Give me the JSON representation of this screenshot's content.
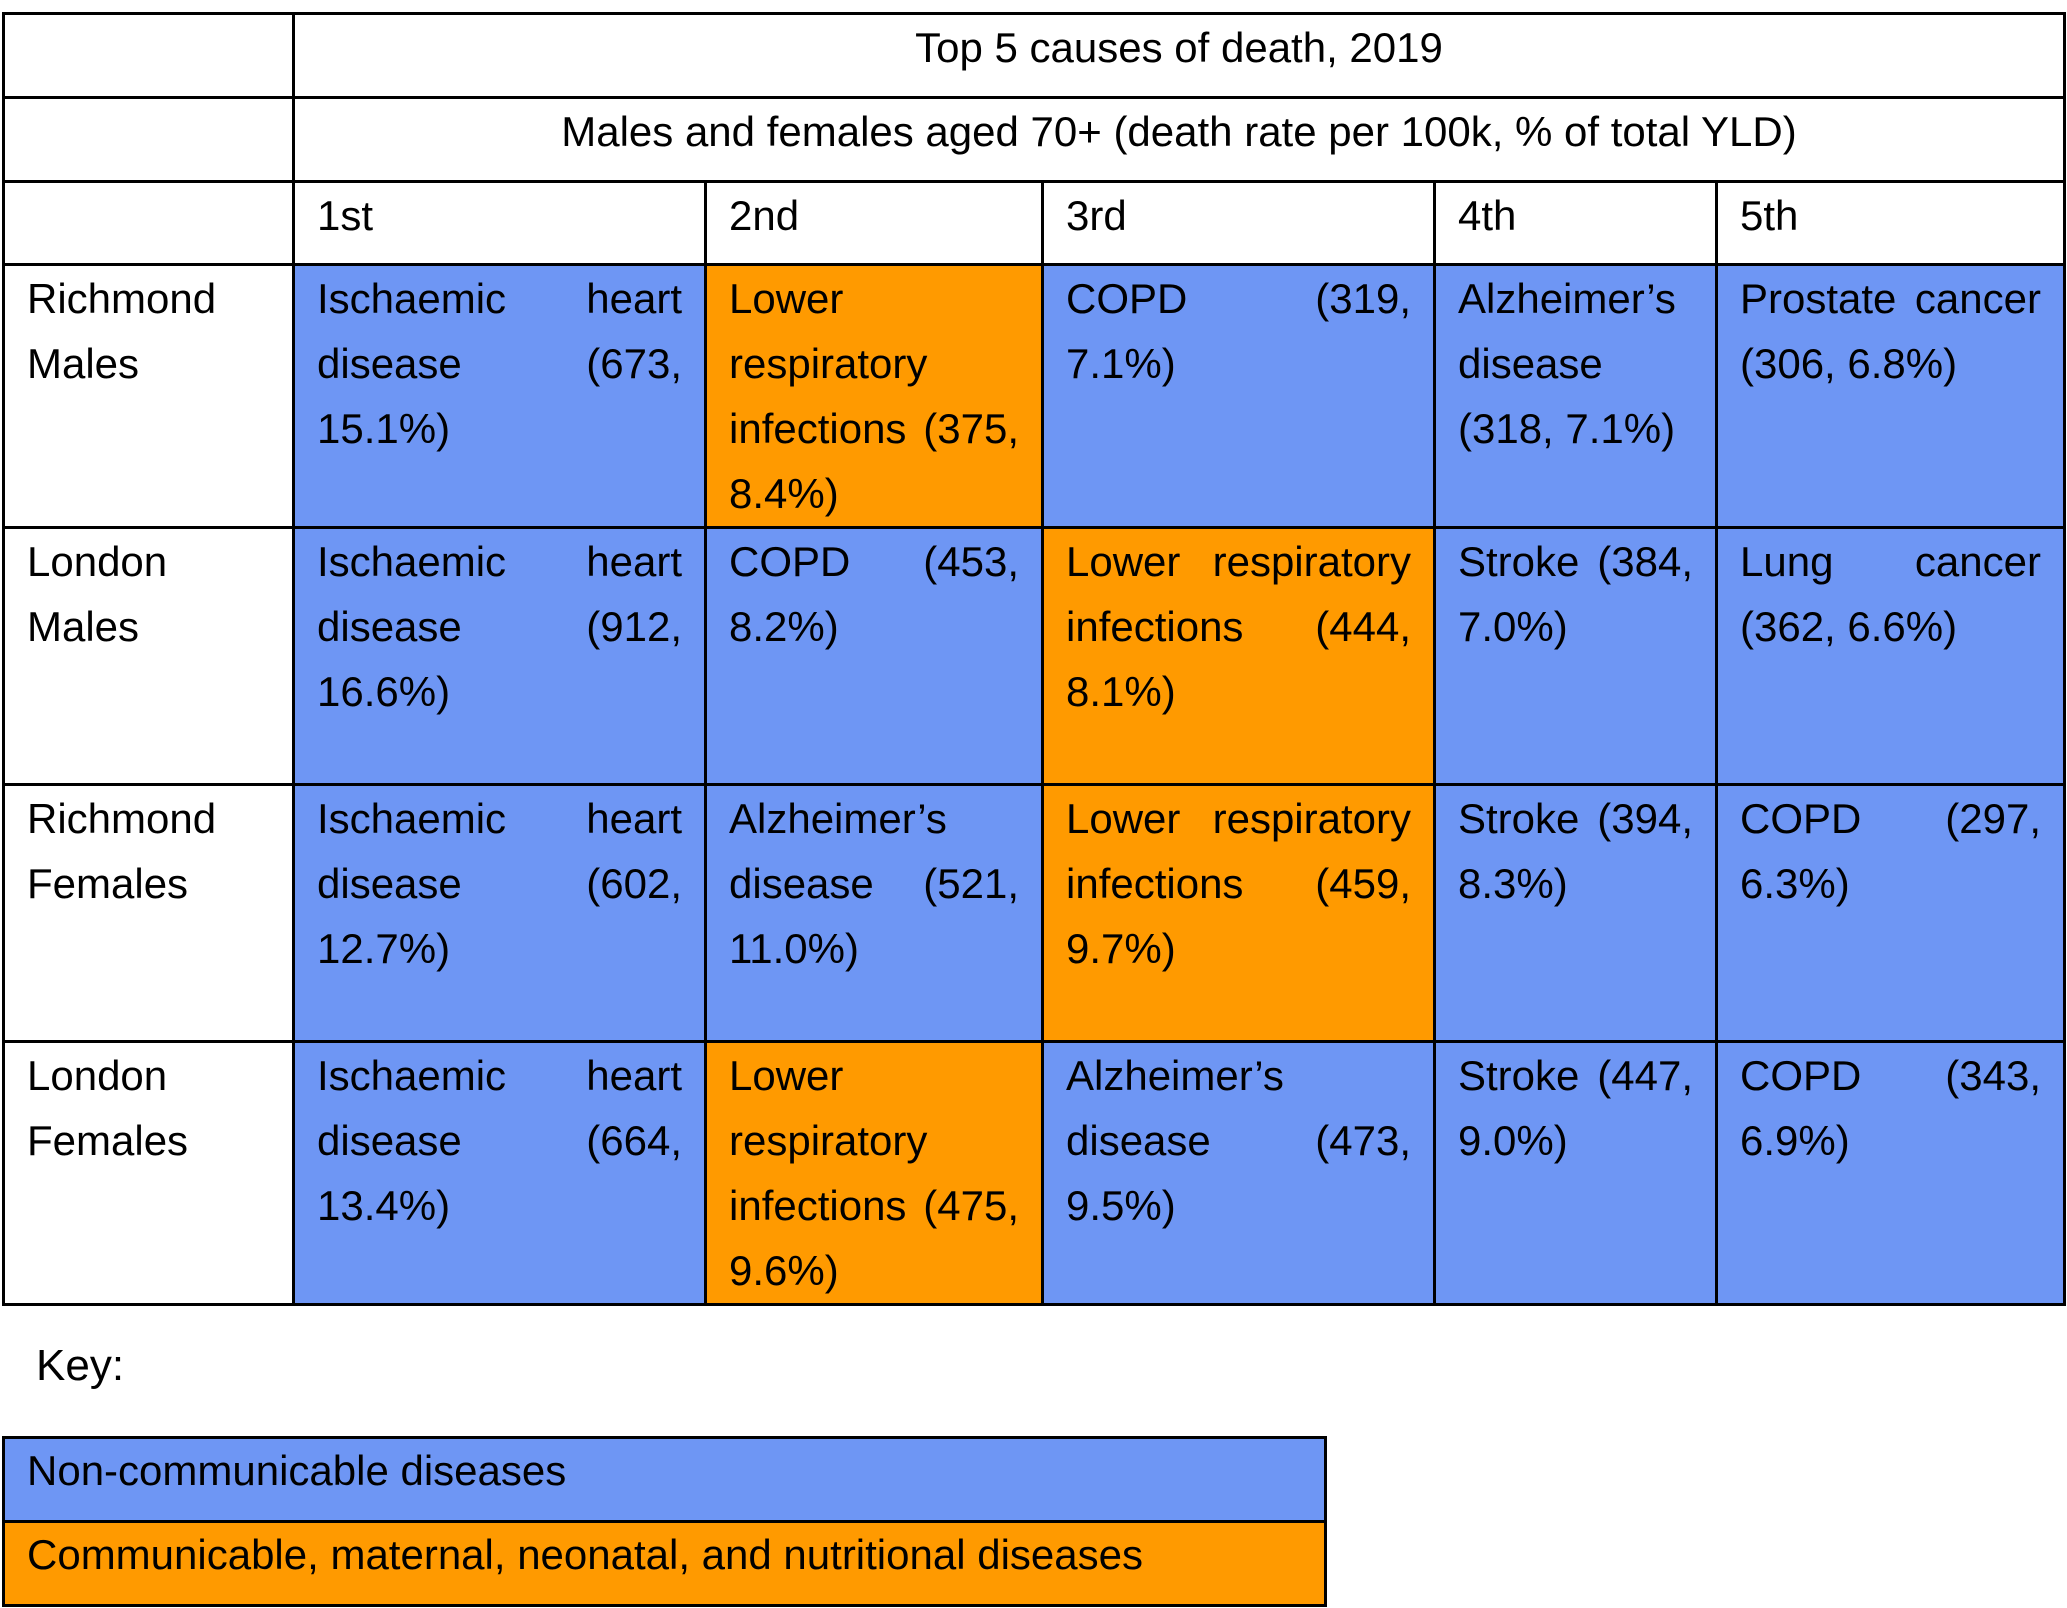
{
  "table": {
    "title": "Top 5 causes of death, 2019",
    "subtitle": "Males and females aged 70+ (death rate per 100k, % of total YLD)",
    "rank_headers": [
      "1st",
      "2nd",
      "3rd",
      "4th",
      "5th"
    ],
    "rows": [
      {
        "label": "Richmond Males",
        "cells": [
          {
            "text": "Ischaemic heart disease (673, 15.1%)",
            "category": "non-communicable"
          },
          {
            "text": "Lower respiratory infections (375, 8.4%)",
            "category": "communicable"
          },
          {
            "text": "COPD (319, 7.1%)",
            "category": "non-communicable"
          },
          {
            "text": "Alzheimer’s disease (318, 7.1%)",
            "category": "non-communicable"
          },
          {
            "text": "Prostate cancer (306, 6.8%)",
            "category": "non-communicable"
          }
        ]
      },
      {
        "label": "London Males",
        "cells": [
          {
            "text": "Ischaemic heart disease (912, 16.6%)",
            "category": "non-communicable"
          },
          {
            "text": "COPD (453, 8.2%)",
            "category": "non-communicable"
          },
          {
            "text": "Lower respiratory infections (444, 8.1%)",
            "category": "communicable"
          },
          {
            "text": "Stroke (384, 7.0%)",
            "category": "non-communicable"
          },
          {
            "text": "Lung cancer (362, 6.6%)",
            "category": "non-communicable"
          }
        ]
      },
      {
        "label": "Richmond Females",
        "cells": [
          {
            "text": "Ischaemic heart disease (602, 12.7%)",
            "category": "non-communicable"
          },
          {
            "text": "Alzheimer’s disease (521, 11.0%)",
            "category": "non-communicable"
          },
          {
            "text": "Lower respiratory infections (459, 9.7%)",
            "category": "communicable"
          },
          {
            "text": "Stroke (394, 8.3%)",
            "category": "non-communicable"
          },
          {
            "text": "COPD (297, 6.3%)",
            "category": "non-communicable"
          }
        ]
      },
      {
        "label": "London Females",
        "cells": [
          {
            "text": "Ischaemic heart disease (664, 13.4%)",
            "category": "non-communicable"
          },
          {
            "text": "Lower respiratory infections (475, 9.6%)",
            "category": "communicable"
          },
          {
            "text": "Alzheimer’s disease (473, 9.5%)",
            "category": "non-communicable"
          },
          {
            "text": "Stroke (447, 9.0%)",
            "category": "non-communicable"
          },
          {
            "text": "COPD (343, 6.9%)",
            "category": "non-communicable"
          }
        ]
      }
    ]
  },
  "key": {
    "label": "Key:",
    "non_communicable": "Non-communicable diseases",
    "communicable": "Communicable, maternal, neonatal, and nutritional diseases"
  },
  "colors": {
    "non_communicable": "#6e96f4",
    "communicable": "#ff9a00",
    "border": "#000000"
  }
}
